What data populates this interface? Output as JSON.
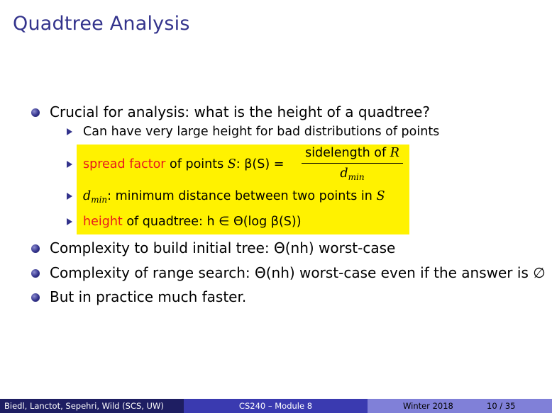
{
  "title": "Quadtree Analysis",
  "bullets": {
    "b1": "Crucial for analysis: what is the height of a quadtree?",
    "sub1": "Can have very large height for bad distributions of points",
    "spread_term": "spread factor",
    "spread_text": " of points ",
    "spread_var": "S",
    "spread_colon": ": ",
    "spread_expr": "β(S) =",
    "frac_num": "sidelength of ",
    "frac_num_var": "R",
    "frac_den": "d",
    "frac_den_sub": "min",
    "dmin_var": "d",
    "dmin_sub": "min",
    "dmin_text": ": minimum distance between two points in ",
    "dmin_var2": "S",
    "height_term": "height",
    "height_text": " of quadtree: ",
    "height_expr": "h ∈ Θ(log β(S))",
    "b2": "Complexity to build initial tree: Θ(nh) worst-case",
    "b3": "Complexity of range search: Θ(nh) worst-case even if the answer is ∅",
    "b4": "But in practice much faster."
  },
  "footer": {
    "authors": "Biedl, Lanctot, Sepehri, Wild (SCS, UW)",
    "course": "CS240 – Module 8",
    "term": "Winter 2018",
    "page": "10 / 35"
  },
  "colors": {
    "title": "#33338c",
    "highlight": "#fff200",
    "term": "#e8191c"
  }
}
